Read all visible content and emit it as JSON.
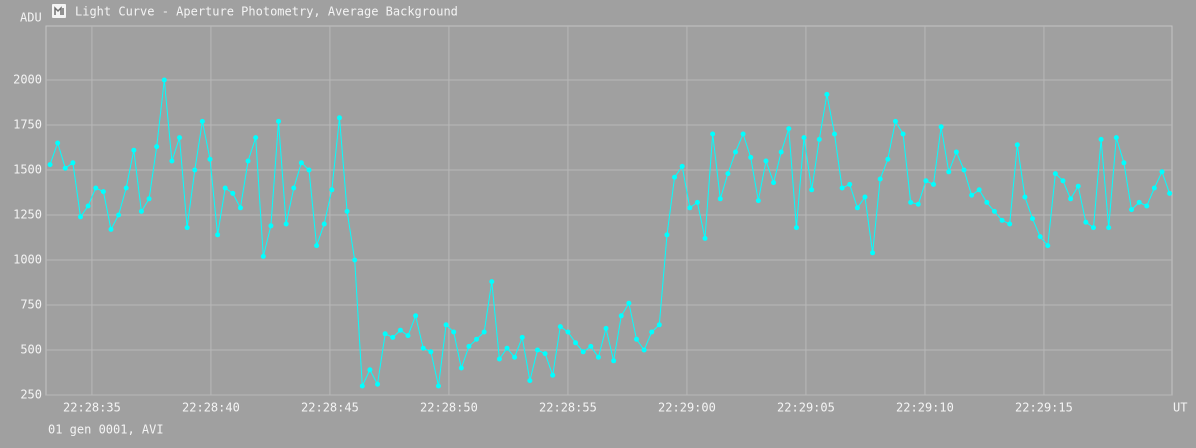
{
  "chart_data": {
    "type": "line",
    "title": "Light Curve - Aperture Photometry, Average Background",
    "y_label": "ADU",
    "x_label": "UT",
    "footer": "01 gen 0001, AVI",
    "color": "#00ffff",
    "grid": true,
    "xlim": [
      33.07,
      80.38
    ],
    "ylim": [
      250,
      2300
    ],
    "xticks": [
      {
        "value": 35,
        "label": "22:28:35"
      },
      {
        "value": 40,
        "label": "22:28:40"
      },
      {
        "value": 45,
        "label": "22:28:45"
      },
      {
        "value": 50,
        "label": "22:28:50"
      },
      {
        "value": 55,
        "label": "22:28:55"
      },
      {
        "value": 60,
        "label": "22:29:00"
      },
      {
        "value": 65,
        "label": "22:29:05"
      },
      {
        "value": 70,
        "label": "22:29:10"
      },
      {
        "value": 75,
        "label": "22:29:15"
      }
    ],
    "yticks": [
      250,
      500,
      750,
      1000,
      1250,
      1500,
      1750,
      2000
    ],
    "x": [
      33.24,
      33.56,
      33.88,
      34.2,
      34.52,
      34.84,
      35.16,
      35.48,
      35.8,
      36.12,
      36.44,
      36.76,
      37.08,
      37.4,
      37.72,
      38.04,
      38.36,
      38.68,
      39.0,
      39.32,
      39.64,
      39.96,
      40.28,
      40.6,
      40.92,
      41.24,
      41.56,
      41.88,
      42.2,
      42.52,
      42.84,
      43.16,
      43.48,
      43.8,
      44.12,
      44.44,
      44.76,
      45.08,
      45.4,
      45.72,
      46.04,
      46.36,
      46.68,
      47.0,
      47.32,
      47.64,
      47.96,
      48.28,
      48.6,
      48.92,
      49.24,
      49.56,
      49.88,
      50.2,
      50.52,
      50.84,
      51.16,
      51.48,
      51.8,
      52.12,
      52.44,
      52.76,
      53.08,
      53.4,
      53.72,
      54.04,
      54.36,
      54.68,
      55.0,
      55.32,
      55.64,
      55.96,
      56.28,
      56.6,
      56.92,
      57.24,
      57.56,
      57.88,
      58.2,
      58.52,
      58.84,
      59.16,
      59.48,
      59.8,
      60.12,
      60.44,
      60.76,
      61.08,
      61.4,
      61.72,
      62.04,
      62.36,
      62.68,
      63.0,
      63.32,
      63.64,
      63.96,
      64.28,
      64.6,
      64.92,
      65.24,
      65.56,
      65.88,
      66.2,
      66.52,
      66.84,
      67.16,
      67.48,
      67.8,
      68.12,
      68.44,
      68.76,
      69.08,
      69.4,
      69.72,
      70.04,
      70.36,
      70.68,
      71.0,
      71.32,
      71.64,
      71.96,
      72.28,
      72.6,
      72.92,
      73.24,
      73.56,
      73.88,
      74.2,
      74.52,
      74.84,
      75.16,
      75.48,
      75.8,
      76.12,
      76.44,
      76.76,
      77.08,
      77.4,
      77.72,
      78.04,
      78.36,
      78.68,
      79.0,
      79.32,
      79.64,
      79.96,
      80.28
    ],
    "values": [
      1530,
      1650,
      1510,
      1540,
      1240,
      1300,
      1400,
      1380,
      1170,
      1250,
      1400,
      1610,
      1270,
      1340,
      1630,
      2000,
      1550,
      1680,
      1180,
      1500,
      1770,
      1560,
      1140,
      1400,
      1370,
      1290,
      1550,
      1680,
      1020,
      1190,
      1770,
      1200,
      1400,
      1540,
      1500,
      1080,
      1200,
      1390,
      1790,
      1270,
      1000,
      300,
      390,
      310,
      590,
      570,
      610,
      580,
      690,
      510,
      490,
      300,
      640,
      600,
      400,
      520,
      560,
      600,
      880,
      450,
      510,
      460,
      570,
      330,
      500,
      480,
      360,
      630,
      600,
      540,
      490,
      520,
      460,
      620,
      440,
      690,
      760,
      560,
      500,
      600,
      640,
      1140,
      1460,
      1520,
      1290,
      1320,
      1120,
      1700,
      1340,
      1480,
      1600,
      1700,
      1570,
      1330,
      1550,
      1430,
      1600,
      1730,
      1180,
      1680,
      1390,
      1670,
      1920,
      1700,
      1400,
      1420,
      1290,
      1350,
      1040,
      1450,
      1560,
      1770,
      1700,
      1320,
      1310,
      1440,
      1420,
      1740,
      1490,
      1600,
      1500,
      1360,
      1390,
      1320,
      1270,
      1220,
      1200,
      1640,
      1350,
      1230,
      1130,
      1080,
      1480,
      1440,
      1340,
      1410,
      1210,
      1180,
      1670,
      1180,
      1680,
      1540,
      1280,
      1320,
      1300,
      1400,
      1490,
      1370
    ]
  }
}
